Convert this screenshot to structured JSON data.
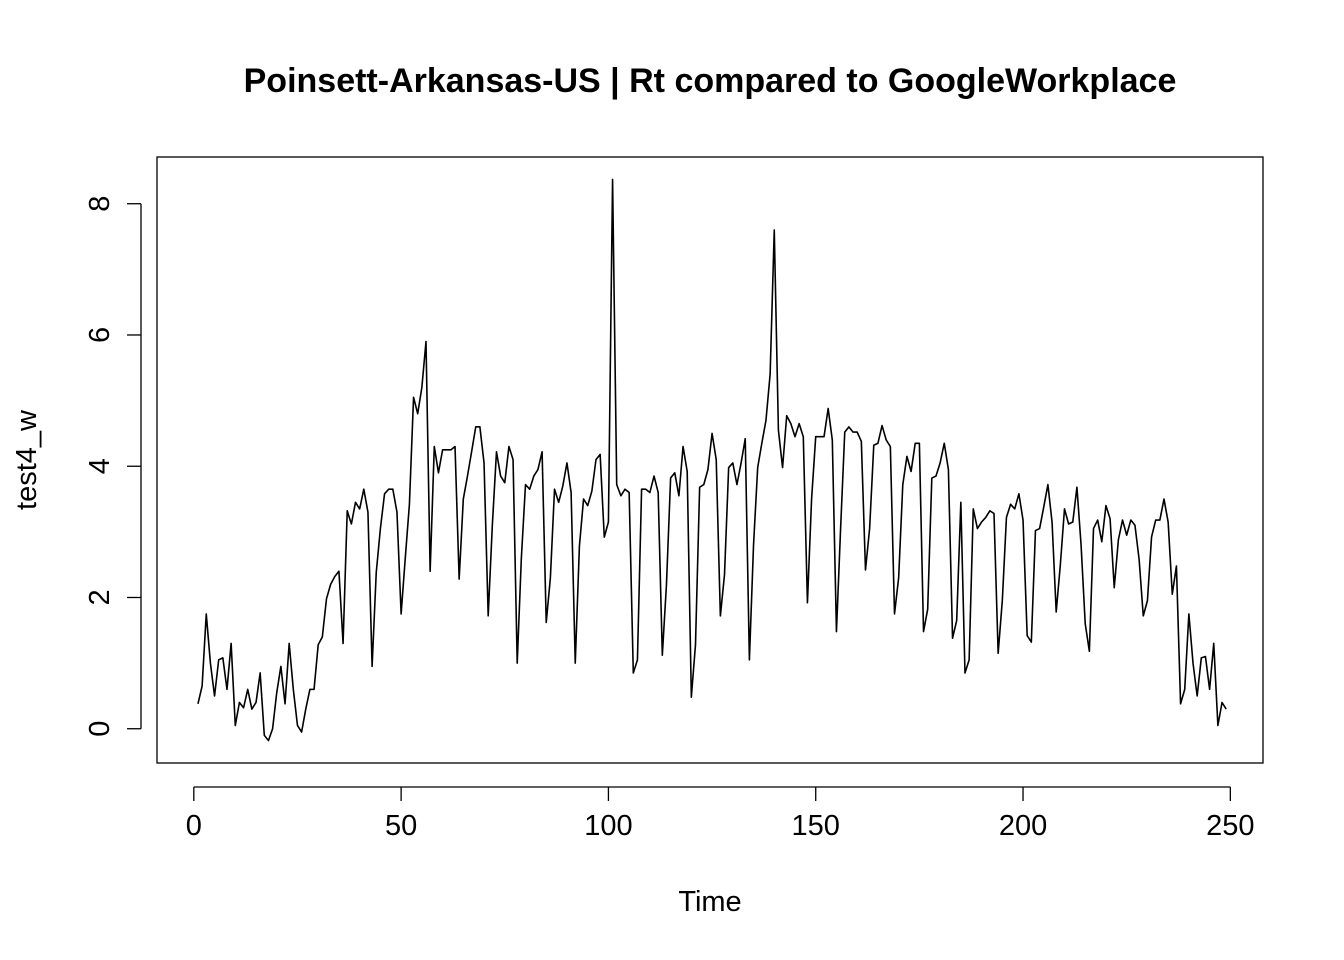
{
  "chart_data": {
    "type": "line",
    "title": "Poinsett-Arkansas-US | Rt compared to GoogleWorkplace",
    "xlabel": "Time",
    "ylabel": "test4_w",
    "xlim": [
      1,
      248
    ],
    "ylim": [
      -0.18,
      8.37
    ],
    "x_ticks": [
      0,
      50,
      100,
      150,
      200,
      250
    ],
    "y_ticks": [
      0,
      2,
      4,
      6,
      8
    ],
    "grid": false,
    "legend": "none",
    "line_color": "#000000",
    "series": [
      {
        "x_start": 1,
        "values": [
          0.38,
          0.65,
          1.75,
          1.0,
          0.5,
          1.05,
          1.08,
          0.6,
          1.3,
          0.05,
          0.4,
          0.32,
          0.6,
          0.3,
          0.4,
          0.85,
          -0.1,
          -0.18,
          0.0,
          0.55,
          0.95,
          0.38,
          1.3,
          0.6,
          0.05,
          -0.05,
          0.3,
          0.6,
          0.6,
          1.28,
          1.4,
          1.98,
          2.2,
          2.32,
          2.4,
          1.3,
          3.32,
          3.12,
          3.45,
          3.35,
          3.65,
          3.3,
          0.95,
          2.38,
          3.05,
          3.58,
          3.65,
          3.65,
          3.3,
          1.75,
          2.6,
          3.42,
          5.05,
          4.8,
          5.2,
          5.9,
          2.4,
          4.3,
          3.9,
          4.25,
          4.25,
          4.25,
          4.3,
          2.28,
          3.5,
          3.85,
          4.22,
          4.6,
          4.6,
          4.05,
          1.72,
          3.1,
          4.22,
          3.85,
          3.75,
          4.3,
          4.1,
          1.0,
          2.6,
          3.72,
          3.65,
          3.85,
          3.95,
          4.22,
          1.62,
          2.3,
          3.65,
          3.45,
          3.7,
          4.05,
          3.6,
          1.0,
          2.78,
          3.5,
          3.4,
          3.62,
          4.1,
          4.18,
          2.92,
          3.15,
          8.37,
          3.72,
          3.55,
          3.65,
          3.6,
          0.85,
          1.05,
          3.65,
          3.65,
          3.6,
          3.85,
          3.6,
          1.12,
          2.2,
          3.82,
          3.9,
          3.55,
          4.3,
          3.92,
          0.48,
          1.28,
          3.68,
          3.72,
          3.95,
          4.5,
          4.1,
          1.72,
          2.35,
          3.98,
          4.05,
          3.72,
          4.05,
          4.42,
          1.05,
          2.8,
          3.98,
          4.35,
          4.7,
          5.4,
          7.6,
          4.55,
          3.98,
          4.77,
          4.65,
          4.45,
          4.65,
          4.45,
          1.92,
          3.5,
          4.45,
          4.45,
          4.45,
          4.88,
          4.4,
          1.48,
          3.05,
          4.52,
          4.6,
          4.52,
          4.52,
          4.38,
          2.42,
          3.05,
          4.32,
          4.35,
          4.62,
          4.4,
          4.3,
          1.75,
          2.3,
          3.72,
          4.15,
          3.92,
          4.35,
          4.35,
          1.48,
          1.82,
          3.82,
          3.85,
          4.05,
          4.35,
          3.95,
          1.38,
          1.65,
          3.45,
          0.85,
          1.05,
          3.35,
          3.05,
          3.15,
          3.22,
          3.32,
          3.28,
          1.15,
          1.95,
          3.22,
          3.42,
          3.35,
          3.58,
          3.18,
          1.42,
          1.32,
          3.02,
          3.05,
          3.38,
          3.72,
          3.15,
          1.78,
          2.5,
          3.35,
          3.12,
          3.15,
          3.68,
          2.8,
          1.6,
          1.18,
          3.05,
          3.18,
          2.85,
          3.4,
          3.2,
          2.15,
          2.88,
          3.18,
          2.95,
          3.18,
          3.1,
          2.58,
          1.72,
          1.95,
          2.92,
          3.18,
          3.18,
          3.5,
          3.15,
          2.05,
          2.48,
          0.38,
          0.6,
          1.75,
          1.0,
          0.5,
          1.08,
          1.1,
          0.6,
          1.3,
          0.05,
          0.4,
          0.3
        ]
      }
    ]
  }
}
